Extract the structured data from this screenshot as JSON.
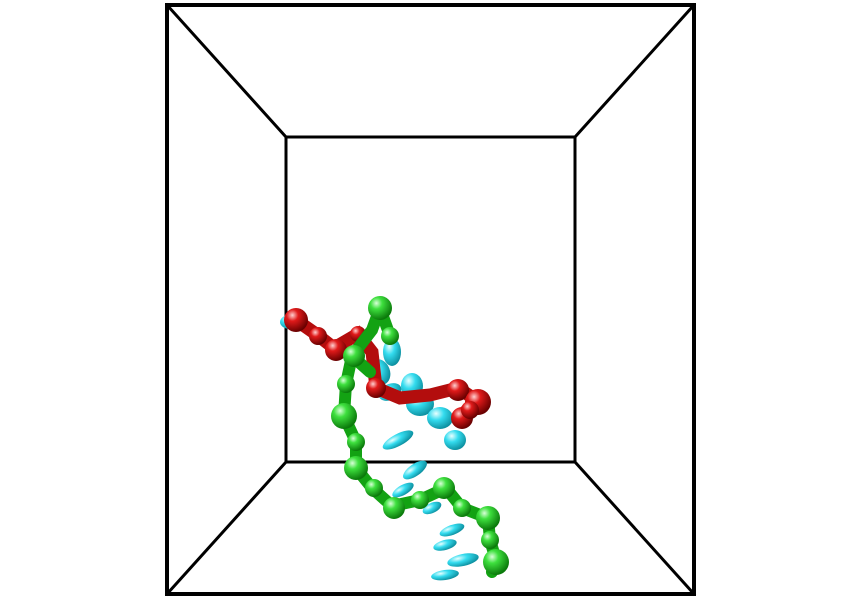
{
  "scene": {
    "background": "#ffffff",
    "box_color": "#000000",
    "colors": {
      "strand_green": "#22cc22",
      "strand_red": "#dd1111",
      "bases_cyan": "#22d4e6"
    }
  }
}
